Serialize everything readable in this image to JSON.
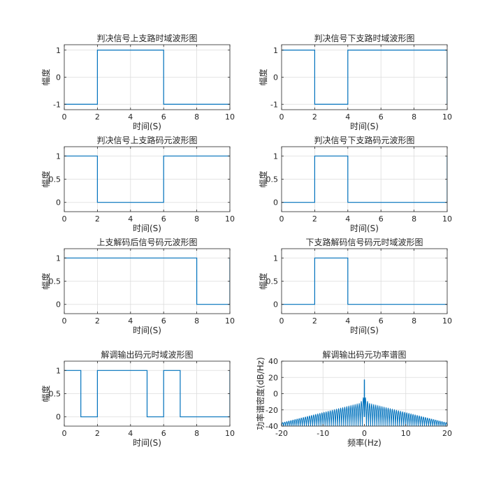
{
  "figure": {
    "background": "#ffffff"
  },
  "style": {
    "line_color": "#0072BD",
    "axes_color": "#262626",
    "grid_color": "#dcdcdc"
  },
  "chart_data": [
    {
      "type": "line",
      "title": "判决信号上支路时域波形图",
      "xlabel": "时间(S)",
      "ylabel": "幅度",
      "xlim": [
        0,
        10
      ],
      "ylim": [
        -1.2,
        1.2
      ],
      "xticks": [
        0,
        2,
        4,
        6,
        8,
        10
      ],
      "yticks": [
        -1,
        0,
        1
      ],
      "grid": true,
      "series": [
        {
          "x": [
            0,
            2,
            2,
            6,
            6,
            10
          ],
          "y": [
            -1,
            -1,
            1,
            1,
            -1,
            -1
          ]
        }
      ]
    },
    {
      "type": "line",
      "title": "判决信号下支路时域波形图",
      "xlabel": "时间(S)",
      "ylabel": "幅度",
      "xlim": [
        0,
        10
      ],
      "ylim": [
        -1.2,
        1.2
      ],
      "xticks": [
        0,
        2,
        4,
        6,
        8,
        10
      ],
      "yticks": [
        -1,
        0,
        1
      ],
      "grid": true,
      "series": [
        {
          "x": [
            0,
            2,
            2,
            4,
            4,
            10,
            10
          ],
          "y": [
            1,
            1,
            -1,
            -1,
            1,
            1,
            -1
          ]
        }
      ]
    },
    {
      "type": "line",
      "title": "判决信号上支路码元波形图",
      "xlabel": "时间(S)",
      "ylabel": "幅度",
      "xlim": [
        0,
        10
      ],
      "ylim": [
        -0.2,
        1.2
      ],
      "xticks": [
        0,
        2,
        4,
        6,
        8,
        10
      ],
      "yticks": [
        0,
        0.5,
        1
      ],
      "grid": true,
      "series": [
        {
          "x": [
            0,
            2,
            2,
            6,
            6,
            10
          ],
          "y": [
            1,
            1,
            0,
            0,
            1,
            1
          ]
        }
      ]
    },
    {
      "type": "line",
      "title": "判决信号下支路码元波形图",
      "xlabel": "时间(S)",
      "ylabel": "幅度",
      "xlim": [
        0,
        10
      ],
      "ylim": [
        -0.2,
        1.2
      ],
      "xticks": [
        0,
        2,
        4,
        6,
        8,
        10
      ],
      "yticks": [
        0,
        0.5,
        1
      ],
      "grid": true,
      "series": [
        {
          "x": [
            0,
            2,
            2,
            4,
            4,
            10,
            10
          ],
          "y": [
            0,
            0,
            1,
            1,
            0,
            0,
            1
          ]
        }
      ]
    },
    {
      "type": "line",
      "title": "上支解码后信号码元波形图",
      "xlabel": "时间(S)",
      "ylabel": "幅度",
      "xlim": [
        0,
        10
      ],
      "ylim": [
        -0.2,
        1.2
      ],
      "xticks": [
        0,
        2,
        4,
        6,
        8,
        10
      ],
      "yticks": [
        0,
        0.5,
        1
      ],
      "grid": true,
      "series": [
        {
          "x": [
            0,
            8,
            8,
            10,
            10
          ],
          "y": [
            1,
            1,
            0,
            0,
            1
          ]
        }
      ]
    },
    {
      "type": "line",
      "title": "下支路解码信号码元时域波形图",
      "xlabel": "时间(S)",
      "ylabel": "幅度",
      "xlim": [
        0,
        10
      ],
      "ylim": [
        -0.2,
        1.2
      ],
      "xticks": [
        0,
        2,
        4,
        6,
        8,
        10
      ],
      "yticks": [
        0,
        0.5,
        1
      ],
      "grid": true,
      "series": [
        {
          "x": [
            0,
            2,
            2,
            4,
            4,
            10
          ],
          "y": [
            0,
            0,
            1,
            1,
            0,
            0
          ]
        }
      ]
    },
    {
      "type": "line",
      "title": "解调输出码元时域波形图",
      "xlabel": "时间(S)",
      "ylabel": "幅度",
      "xlim": [
        0,
        10
      ],
      "ylim": [
        -0.2,
        1.2
      ],
      "xticks": [
        0,
        2,
        4,
        6,
        8,
        10
      ],
      "yticks": [
        0,
        0.5,
        1
      ],
      "grid": true,
      "series": [
        {
          "x": [
            0,
            1,
            1,
            2,
            2,
            5,
            5,
            6,
            6,
            7,
            7,
            10,
            10
          ],
          "y": [
            1,
            1,
            0,
            0,
            1,
            1,
            0,
            0,
            1,
            1,
            0,
            0,
            1
          ]
        }
      ]
    },
    {
      "type": "line",
      "title": "解调输出码元功率谱图",
      "xlabel": "频率(Hz)",
      "ylabel": "功率谱密度(dB/Hz)",
      "xlim": [
        -20,
        20
      ],
      "ylim": [
        -40,
        40
      ],
      "xticks": [
        -20,
        -10,
        0,
        10,
        20
      ],
      "yticks": [
        -40,
        -20,
        0,
        20,
        40
      ],
      "grid": true,
      "spectrum": {
        "peak_db": 17,
        "main_lobe_db": -3,
        "floor_db": -40,
        "lobe_spacing_hz": 0.5,
        "edge_lobe_db": -36,
        "center_lobe_db": -12
      }
    }
  ]
}
